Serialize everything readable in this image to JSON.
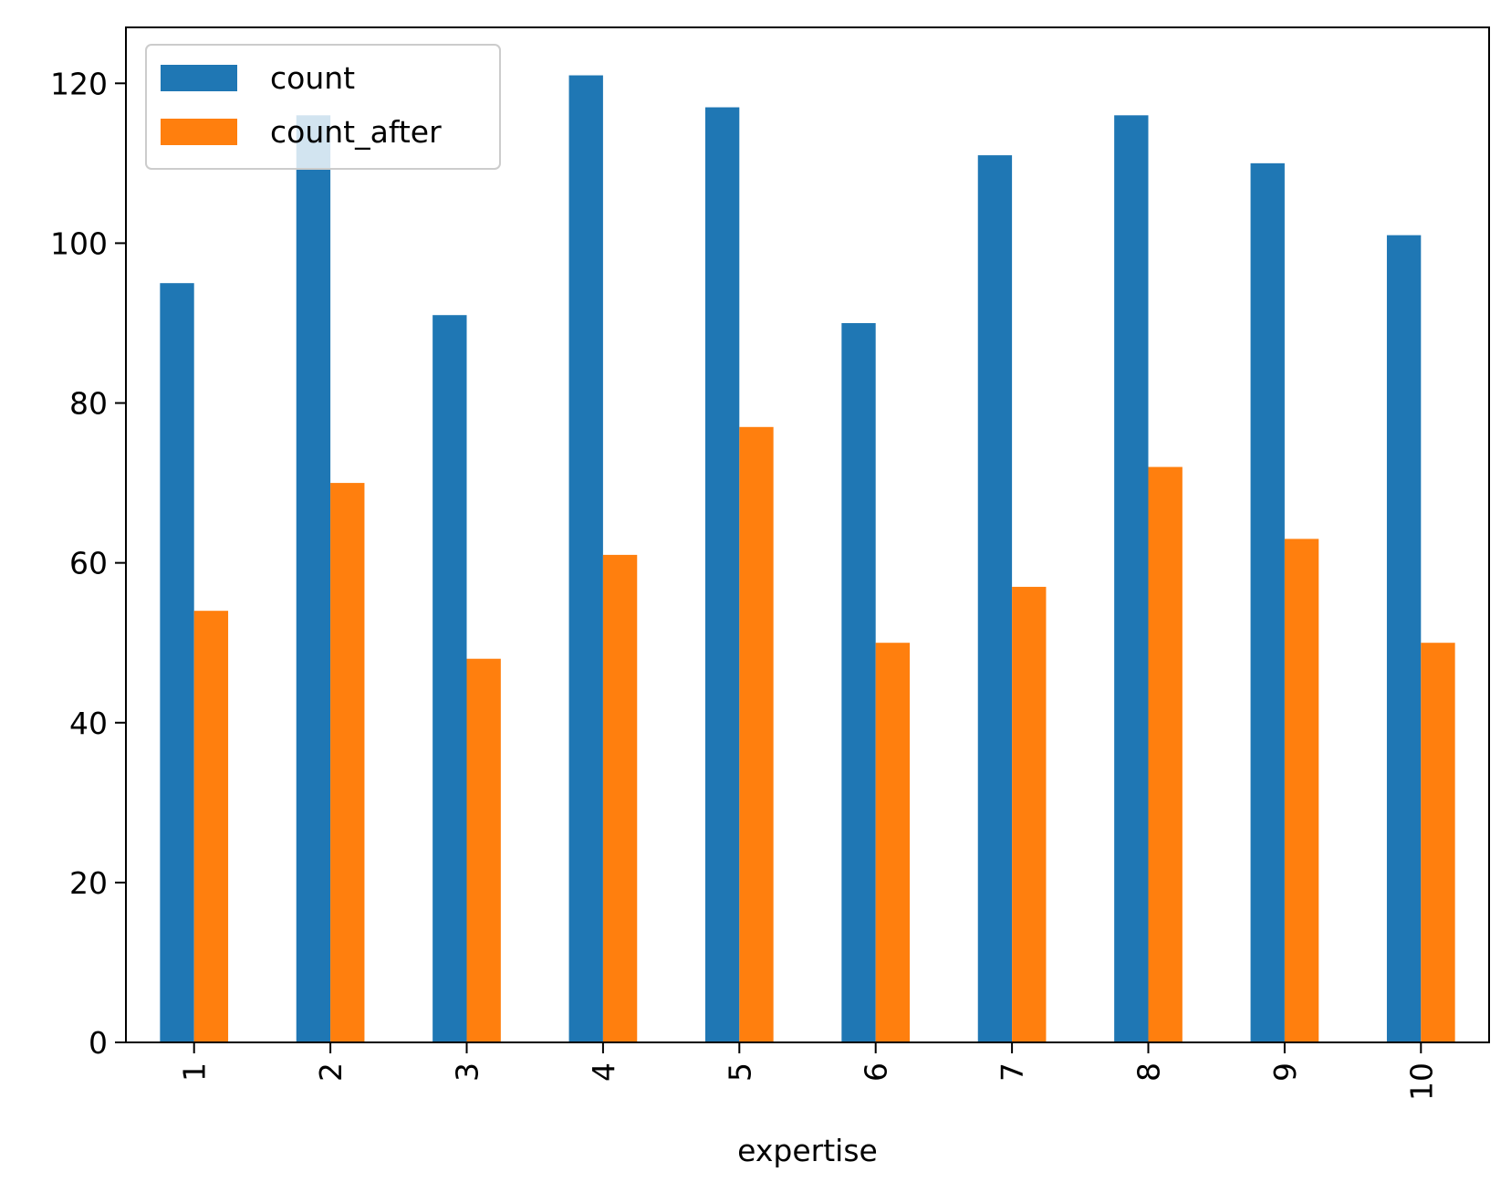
{
  "chart_data": {
    "type": "bar",
    "title": "",
    "xlabel": "expertise",
    "ylabel": "",
    "categories": [
      "1",
      "2",
      "3",
      "4",
      "5",
      "6",
      "7",
      "8",
      "9",
      "10"
    ],
    "series": [
      {
        "name": "count",
        "color": "#1f77b4",
        "values": [
          95,
          116,
          91,
          121,
          117,
          90,
          111,
          116,
          110,
          101
        ]
      },
      {
        "name": "count_after",
        "color": "#ff7f0e",
        "values": [
          54,
          70,
          48,
          61,
          77,
          50,
          57,
          72,
          63,
          50
        ]
      }
    ],
    "ylim": [
      0,
      127
    ],
    "yticks": [
      0,
      20,
      40,
      60,
      80,
      100,
      120
    ],
    "xtick_rotation": "vertical",
    "grid": false,
    "legend": "upper-left"
  }
}
